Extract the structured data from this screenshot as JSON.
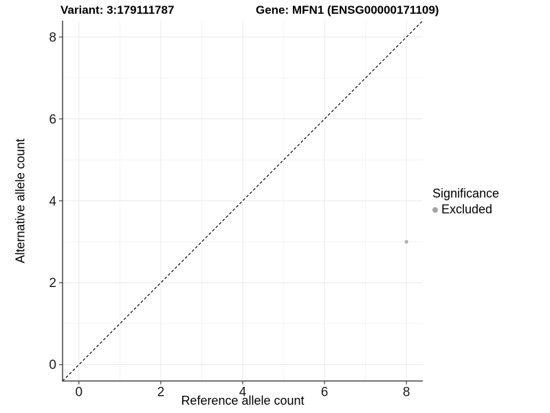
{
  "title": {
    "variant": "Variant: 3:179111787",
    "gene": "Gene: MFN1 (ENSG00000171109)"
  },
  "legend": {
    "title": "Significance",
    "items": [
      {
        "label": "Excluded",
        "color": "#a3a3a3"
      }
    ]
  },
  "chart_data": {
    "type": "scatter",
    "xlabel": "Reference allele count",
    "ylabel": "Alternative allele count",
    "xlim": [
      -0.4,
      8.4
    ],
    "ylim": [
      -0.4,
      8.4
    ],
    "x_major_ticks": [
      0,
      2,
      4,
      6,
      8
    ],
    "y_major_ticks": [
      0,
      2,
      4,
      6,
      8
    ],
    "x_minor_ticks": [
      1,
      3,
      5,
      7
    ],
    "y_minor_ticks": [
      1,
      3,
      5,
      7
    ],
    "grid": true,
    "legend_position": "right",
    "series": [
      {
        "name": "Excluded",
        "color": "#b0b0b0",
        "points": [
          {
            "x": 8,
            "y": 3
          }
        ]
      }
    ],
    "reference_line": {
      "type": "identity",
      "slope": 1,
      "intercept": 0,
      "style": "dashed",
      "color": "#000000"
    }
  },
  "colors": {
    "grid_major": "#e8e8e8",
    "grid_minor": "#f3f3f3",
    "axis_line": "#404040",
    "tick_label": "#1a1a1a"
  }
}
